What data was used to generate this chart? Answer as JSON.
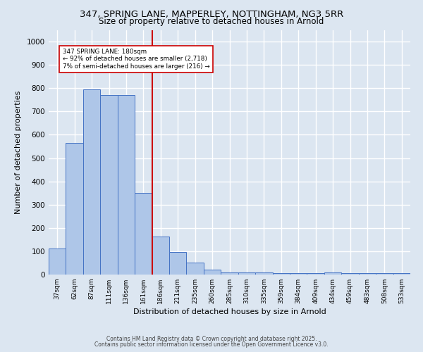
{
  "title_line1": "347, SPRING LANE, MAPPERLEY, NOTTINGHAM, NG3 5RR",
  "title_line2": "Size of property relative to detached houses in Arnold",
  "xlabel": "Distribution of detached houses by size in Arnold",
  "ylabel": "Number of detached properties",
  "categories": [
    "37sqm",
    "62sqm",
    "87sqm",
    "111sqm",
    "136sqm",
    "161sqm",
    "186sqm",
    "211sqm",
    "235sqm",
    "260sqm",
    "285sqm",
    "310sqm",
    "335sqm",
    "359sqm",
    "384sqm",
    "409sqm",
    "434sqm",
    "459sqm",
    "483sqm",
    "508sqm",
    "533sqm"
  ],
  "values": [
    113,
    565,
    795,
    770,
    770,
    350,
    163,
    97,
    52,
    20,
    10,
    10,
    10,
    5,
    5,
    5,
    10,
    5,
    5,
    5,
    5
  ],
  "bar_color": "#aec6e8",
  "bar_edge_color": "#4472c4",
  "vline_x_idx": 6,
  "vline_color": "#cc0000",
  "annotation_text": "347 SPRING LANE: 180sqm\n← 92% of detached houses are smaller (2,718)\n7% of semi-detached houses are larger (216) →",
  "annotation_box_color": "#ffffff",
  "annotation_box_edge": "#cc0000",
  "bg_color": "#dce6f1",
  "plot_bg_color": "#dce6f1",
  "grid_color": "#ffffff",
  "ylim": [
    0,
    1050
  ],
  "yticks": [
    0,
    100,
    200,
    300,
    400,
    500,
    600,
    700,
    800,
    900,
    1000
  ],
  "footer_line1": "Contains HM Land Registry data © Crown copyright and database right 2025.",
  "footer_line2": "Contains public sector information licensed under the Open Government Licence v3.0."
}
